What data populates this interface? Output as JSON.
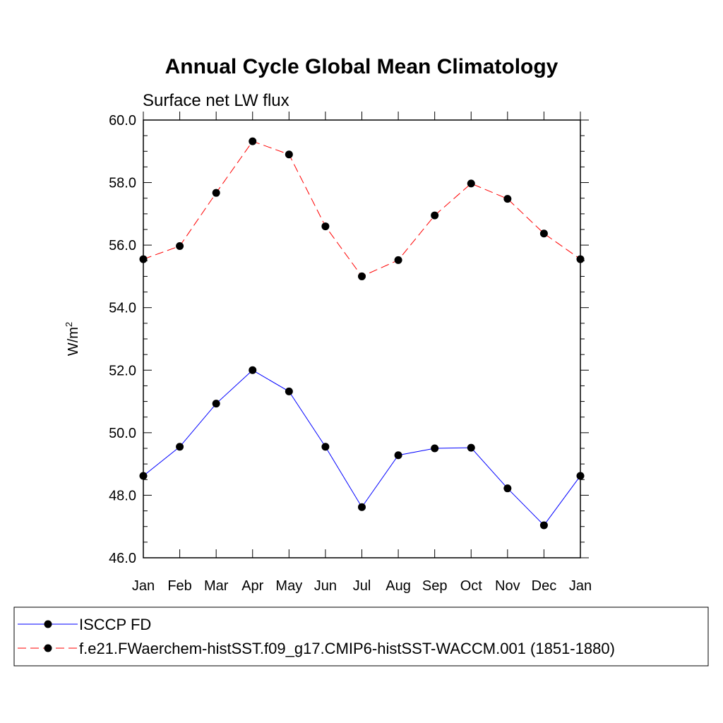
{
  "chart_data": {
    "type": "line",
    "title": "Annual Cycle Global Mean Climatology",
    "subtitle": "Surface net LW flux",
    "xlabel": "",
    "ylabel": "W/m",
    "ylabel_superscript": "2",
    "categories": [
      "Jan",
      "Feb",
      "Mar",
      "Apr",
      "May",
      "Jun",
      "Jul",
      "Aug",
      "Sep",
      "Oct",
      "Nov",
      "Dec",
      "Jan"
    ],
    "ylim": [
      46.0,
      60.0
    ],
    "yticks": [
      46.0,
      48.0,
      50.0,
      52.0,
      54.0,
      56.0,
      58.0,
      60.0
    ],
    "ytick_labels": [
      "46.0",
      "48.0",
      "50.0",
      "52.0",
      "54.0",
      "56.0",
      "58.0",
      "60.0"
    ],
    "grid": false,
    "legend_position": "bottom",
    "series": [
      {
        "name": "ISCCP FD",
        "color": "#0000ff",
        "dash": "solid",
        "marker": "circle",
        "values": [
          48.62,
          49.55,
          50.93,
          52.0,
          51.32,
          49.55,
          47.62,
          49.28,
          49.5,
          49.52,
          48.22,
          47.04,
          48.62
        ]
      },
      {
        "name": "f.e21.FWaerchem-histSST.f09_g17.CMIP6-histSST-WACCM.001 (1851-1880)",
        "color": "#ff0000",
        "dash": "dashed",
        "marker": "circle",
        "values": [
          55.55,
          55.97,
          57.67,
          59.32,
          58.9,
          56.6,
          55.0,
          55.52,
          56.95,
          57.97,
          57.48,
          56.37,
          55.55
        ]
      }
    ]
  }
}
